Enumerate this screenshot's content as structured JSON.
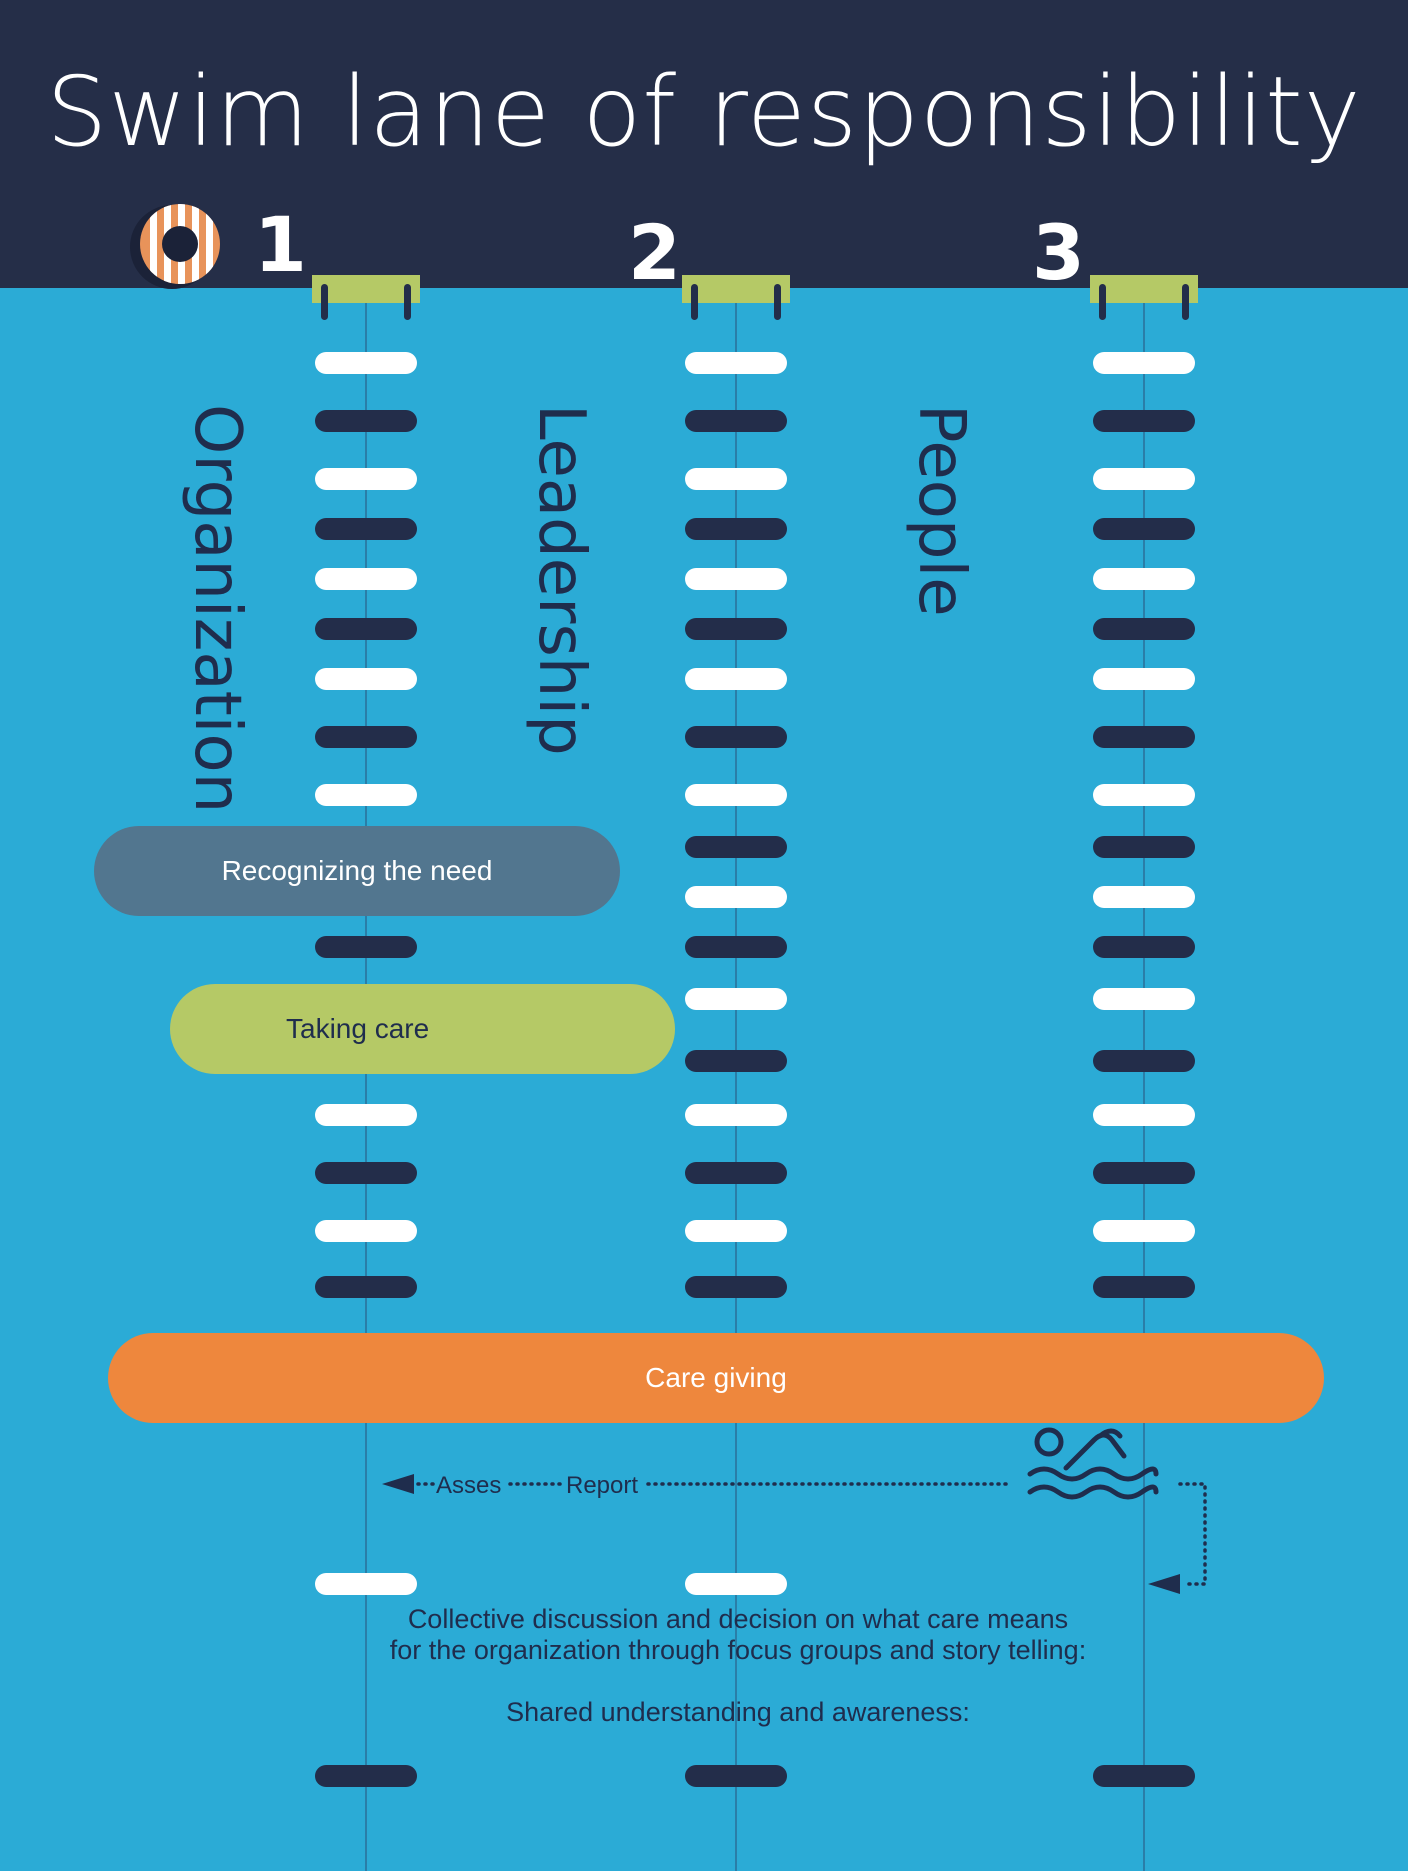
{
  "title": "Swim lane of responsibility",
  "lanes": [
    {
      "number": "1",
      "label": "Organization"
    },
    {
      "number": "2",
      "label": "Leadership"
    },
    {
      "number": "3",
      "label": "People"
    }
  ],
  "steps": {
    "recognizing": "Recognizing the need",
    "taking_care": "Taking care",
    "care_giving": "Care giving"
  },
  "flow": {
    "asses": "Asses",
    "report": "Report"
  },
  "notes": {
    "line1": "Collective discussion and decision on what care means",
    "line2": "for the organization through focus groups and story telling:",
    "line3": "Shared understanding and awareness:"
  },
  "colors": {
    "header": "#252e48",
    "water": "#2babd6",
    "recognizing": "#52768f",
    "taking_care": "#b5c966",
    "care_giving": "#ee873d",
    "lifebuoy": "#e8935a"
  },
  "icons": [
    "lifebuoy-icon",
    "starting-block-icon",
    "swimmer-icon"
  ]
}
